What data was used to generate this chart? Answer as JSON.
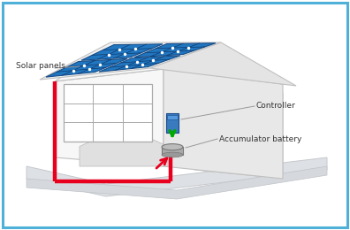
{
  "bg_color": "#ffffff",
  "border_color": "#4fb0d8",
  "house_white": "#f7f7f7",
  "house_mid": "#e8e8e8",
  "house_dark": "#d8d8d8",
  "house_edge": "#c0c0c0",
  "ground_fill": "#dde0e4",
  "ground_edge": "#c5c8cc",
  "solar_blue": "#2176c0",
  "solar_dark": "#164e8a",
  "solar_grid": "#0d3a6e",
  "red_wire": "#e8001e",
  "green_color": "#00aa00",
  "ctrl_blue": "#3a7abf",
  "ctrl_light": "#5599dd",
  "batt_fill": "#999999",
  "batt_top": "#b0b0b0",
  "label_color": "#333333",
  "leader_color": "#999999",
  "label_solar": "Solar panels",
  "label_ctrl": "Controller",
  "label_batt": "Accumulator battery"
}
